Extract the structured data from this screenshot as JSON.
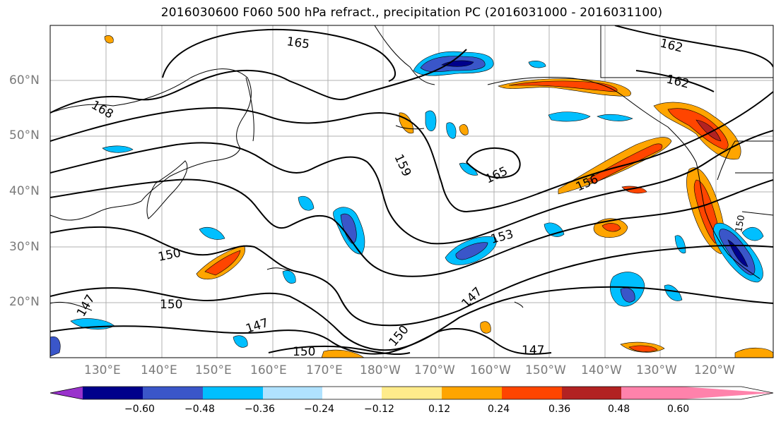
{
  "title": "2016030600 F060 500 hPa refract., precipitation PC (2016031000 - 2016031100)",
  "lat_labels": [
    "60°N",
    "50°N",
    "40°N",
    "30°N",
    "20°N"
  ],
  "lon_labels": [
    "130°E",
    "140°E",
    "150°E",
    "160°E",
    "170°E",
    "180°W",
    "170°W",
    "160°W",
    "150°W",
    "140°W",
    "130°W",
    "120°W"
  ],
  "contour_labels": [
    "165",
    "162",
    "162",
    "168",
    "159",
    "165",
    "156",
    "153",
    "150",
    "150",
    "147",
    "147",
    "147",
    "147",
    "150",
    "150",
    "150"
  ],
  "colorbar": {
    "colors": [
      "#9932cc",
      "#00008b",
      "#3a56c9",
      "#00bfff",
      "#b0e2ff",
      "#ffffff",
      "#ffeb8b",
      "#ffa500",
      "#ff4500",
      "#b22222",
      "#ff82ab"
    ],
    "ticks": [
      "−0.60",
      "−0.48",
      "−0.36",
      "−0.24",
      "−0.12",
      "0.12",
      "0.24",
      "0.36",
      "0.48",
      "0.60"
    ]
  },
  "colors": {
    "grid": "#b0b0b0",
    "contour": "#000000",
    "axis_label": "#7a7a7a"
  }
}
